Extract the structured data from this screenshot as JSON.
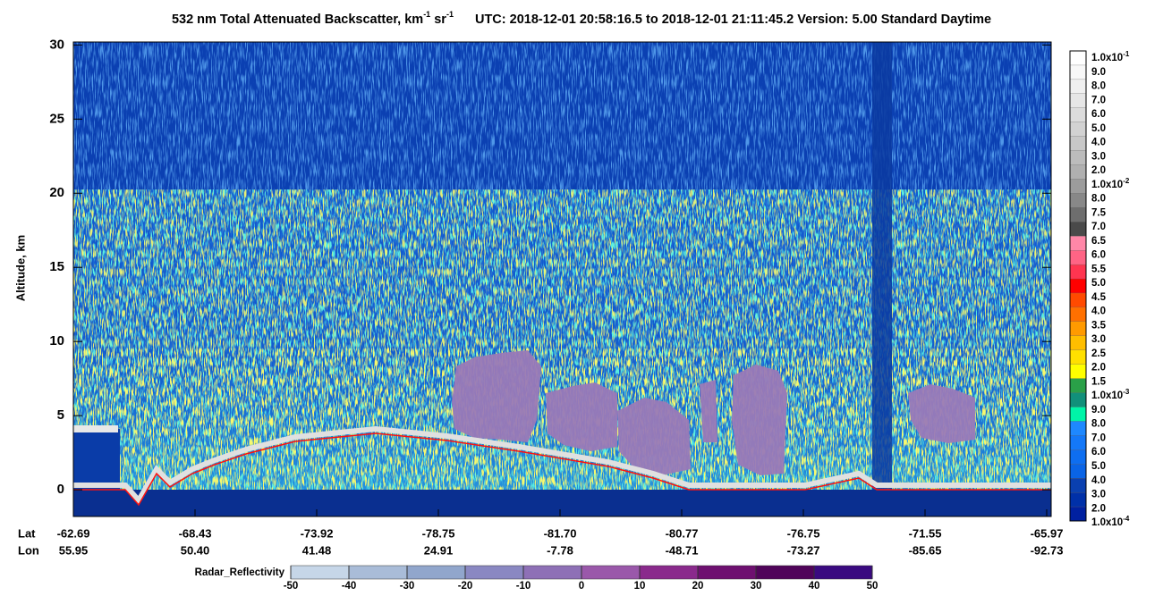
{
  "chart_data": {
    "type": "heatmap",
    "title": [
      "532 nm Total Attenuated Backscatter, km",
      "-1",
      " sr",
      "-1"
    ],
    "subtitle": "UTC:  2018-12-01 20:58:16.5  to  2018-12-01 21:11:45.2    Version: 5.00  Standard  Daytime",
    "ylabel": "Altitude, km",
    "ylim": [
      -1.8,
      30.2
    ],
    "yticks": [
      0,
      5,
      10,
      15,
      20,
      25,
      30
    ],
    "x_rows": [
      {
        "name": "Lat",
        "labels": [
          "-62.69",
          "-68.43",
          "-73.92",
          "-78.75",
          "-81.70",
          "-80.77",
          "-76.75",
          "-71.55",
          "-65.97"
        ]
      },
      {
        "name": "Lon",
        "labels": [
          "55.95",
          "50.40",
          "41.48",
          "24.91",
          "-7.78",
          "-48.71",
          "-73.27",
          "-85.65",
          "-92.73"
        ]
      }
    ],
    "colorbar": {
      "labels": [
        {
          "base": "1.0x10",
          "sup": "-1"
        },
        "9.0",
        "8.0",
        "7.0",
        "6.0",
        "5.0",
        "4.0",
        "3.0",
        "2.0",
        {
          "base": "1.0x10",
          "sup": "-2"
        },
        "8.0",
        "7.5",
        "7.0",
        "6.5",
        "6.0",
        "5.5",
        "5.0",
        "4.5",
        "4.0",
        "3.5",
        "3.0",
        "2.5",
        "2.0",
        "1.5",
        {
          "base": "1.0x10",
          "sup": "-3"
        },
        "9.0",
        "8.0",
        "7.0",
        "6.0",
        "5.0",
        "4.0",
        "3.0",
        "2.0",
        {
          "base": "1.0x10",
          "sup": "-4"
        }
      ],
      "colors": [
        "#ffffff",
        "#f8f8f8",
        "#f0f0f0",
        "#e6e6e6",
        "#dcdcdc",
        "#d2d2d2",
        "#c8c8c8",
        "#bcbcbc",
        "#b0b0b0",
        "#9c9c9c",
        "#888888",
        "#6e6e6e",
        "#4a4a4a",
        "#ff87a8",
        "#ff6485",
        "#ff3550",
        "#ff0000",
        "#ff4a00",
        "#ff7000",
        "#ff9a00",
        "#ffbe00",
        "#ffe000",
        "#ffff00",
        "#2aa048",
        "#11907a",
        "#00f5a8",
        "#1e88ff",
        "#1478f8",
        "#0e6ef0",
        "#0a64e6",
        "#0a40b0",
        "#0030a8",
        "#0020a0"
      ]
    },
    "radar_colorbar": {
      "label": "Radar_Reflectivity",
      "ticks": [
        -50,
        -40,
        -30,
        -20,
        -10,
        0,
        10,
        20,
        30,
        40,
        50
      ],
      "colors": [
        "#c6d6e8",
        "#a9bcd8",
        "#91a6cc",
        "#8a88c2",
        "#8e70b6",
        "#9a58aa",
        "#8a2a8c",
        "#6e1070",
        "#50045a",
        "#3a0a80"
      ]
    }
  }
}
